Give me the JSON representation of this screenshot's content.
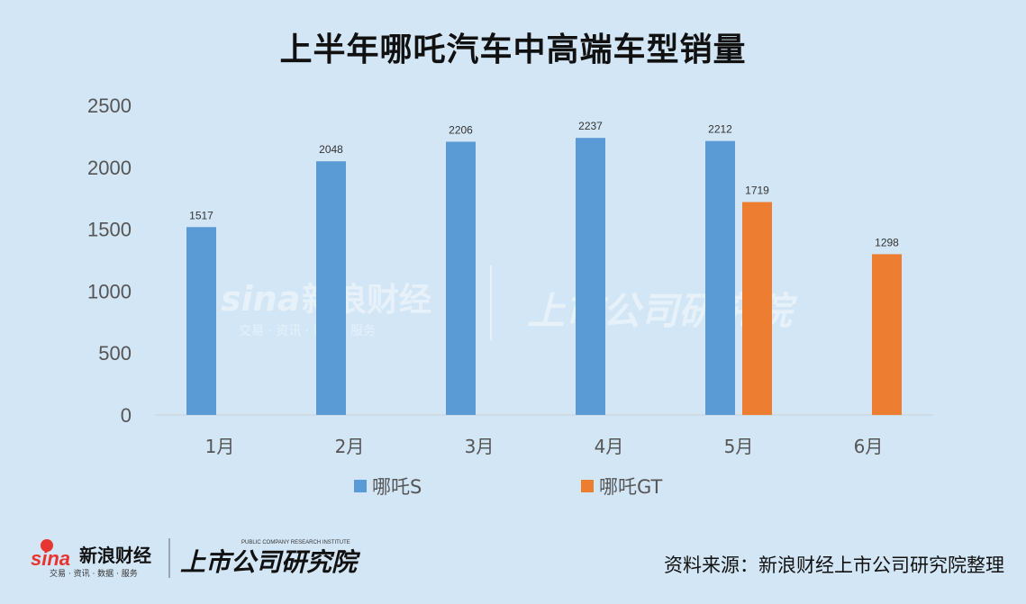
{
  "title": "上半年哪吒汽车中高端车型销量",
  "source_note": "资料来源：新浪财经上市公司研究院整理",
  "colors": {
    "series_s": "#5b9bd5",
    "series_gt": "#ed7d31",
    "background": "#d3e6f5"
  },
  "watermark": {
    "brand": "新浪财经",
    "sub": "交易 · 资讯 · 数据 · 服务",
    "institute": "上市公司研究院",
    "institute_en": "PUBLIC COMPANY RESEARCH INSTITUTE"
  },
  "chart_data": {
    "type": "bar",
    "categories": [
      "1月",
      "2月",
      "3月",
      "4月",
      "5月",
      "6月"
    ],
    "series": [
      {
        "name": "哪吒S",
        "values": [
          1517,
          2048,
          2206,
          2237,
          2212,
          null
        ]
      },
      {
        "name": "哪吒GT",
        "values": [
          null,
          null,
          null,
          null,
          1719,
          1298
        ]
      }
    ],
    "ylim": [
      0,
      2500
    ],
    "yticks": [
      0,
      500,
      1000,
      1500,
      2000,
      2500
    ],
    "xlabel": "",
    "ylabel": "",
    "legend": "bottom",
    "grid": false
  }
}
